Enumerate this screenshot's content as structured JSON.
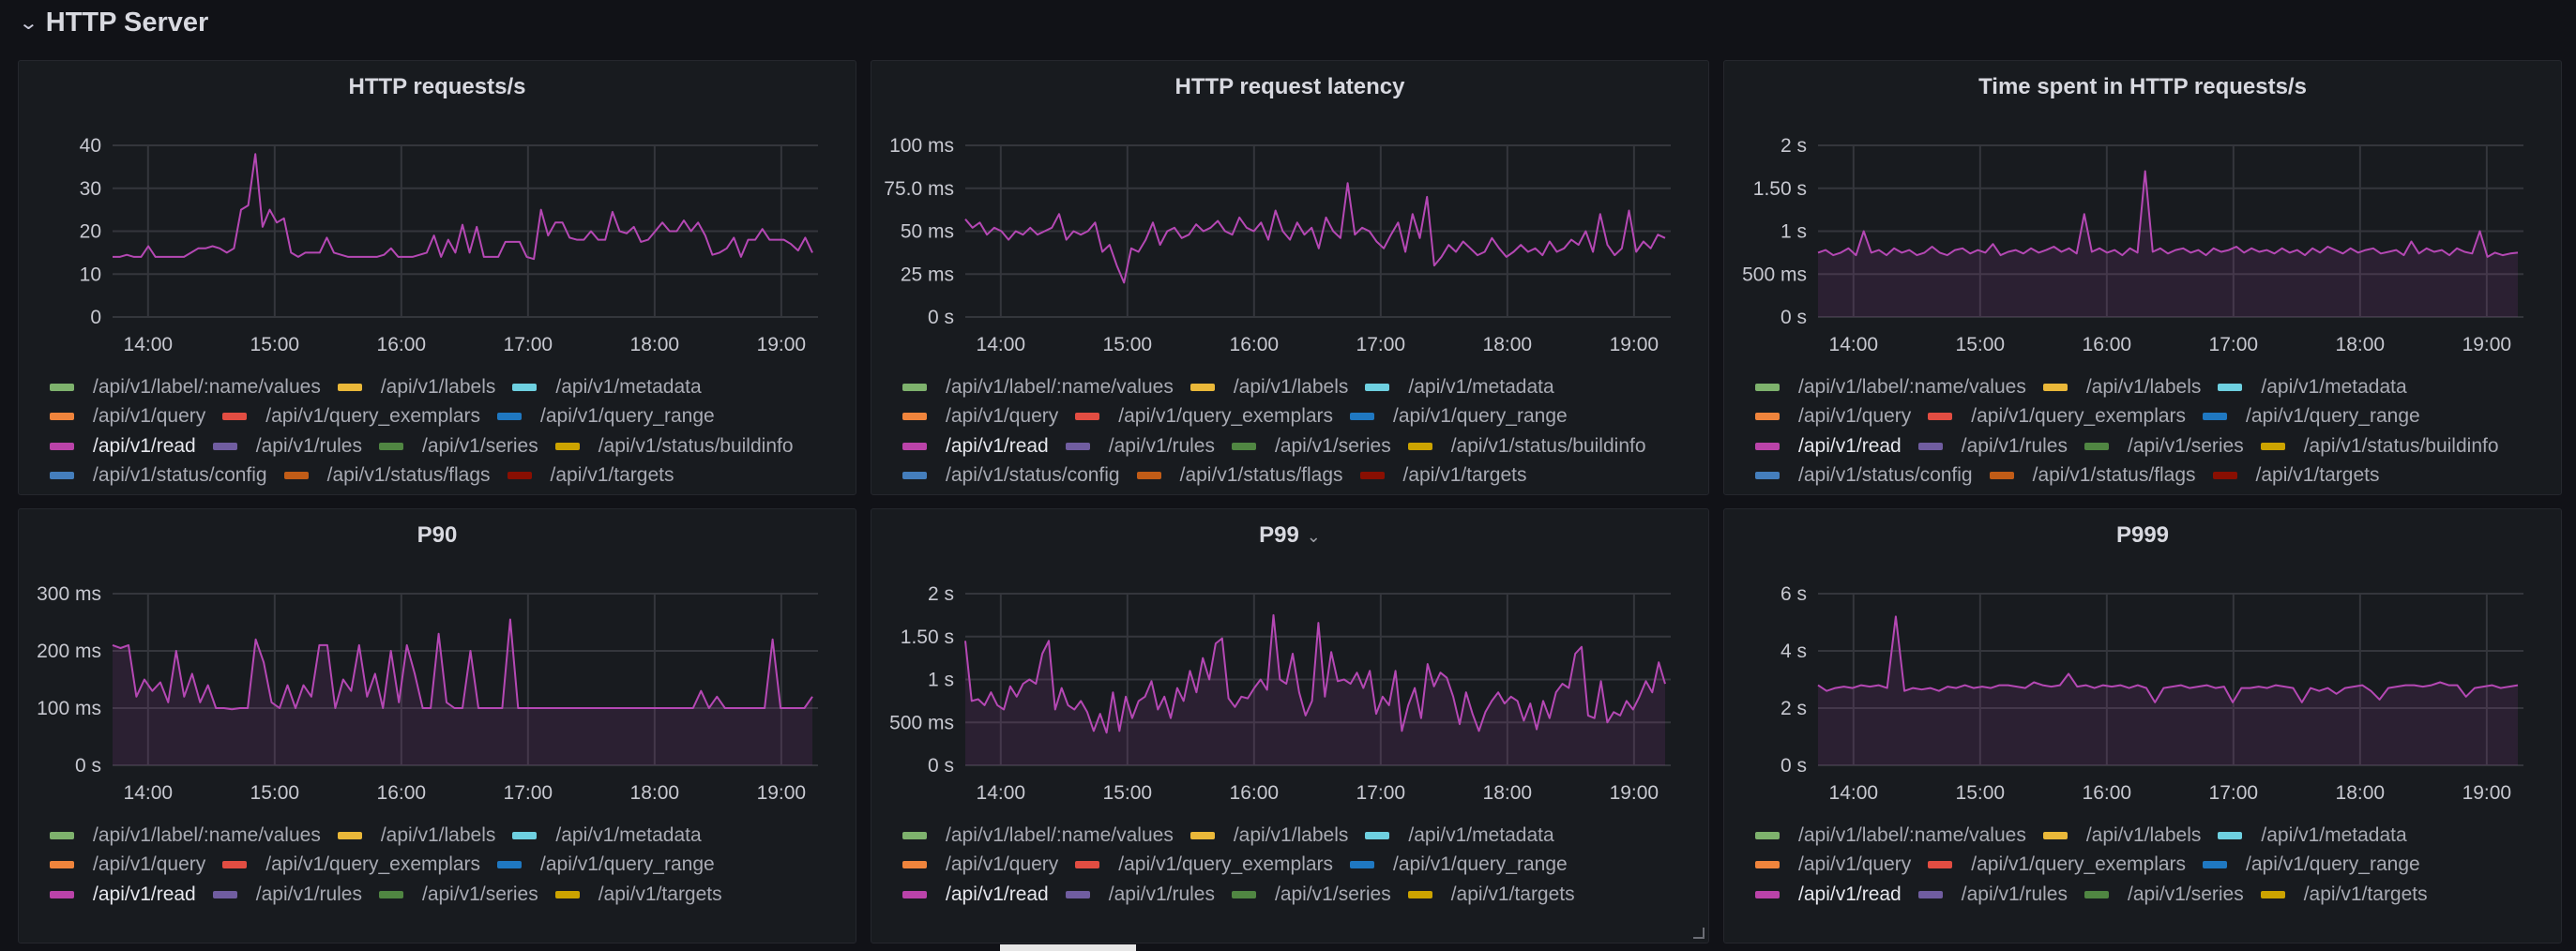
{
  "row": {
    "title": "HTTP Server",
    "chevron_icon": "chevron-down-icon"
  },
  "colors": {
    "line": "#b548b4",
    "fill": "rgba(181,72,180,0.13)",
    "grid": "#34363c"
  },
  "legend_all": [
    {
      "label": "/api/v1/label/:name/values",
      "color": "#7EB26D"
    },
    {
      "label": "/api/v1/labels",
      "color": "#EAB839"
    },
    {
      "label": "/api/v1/metadata",
      "color": "#6ED0E0"
    },
    {
      "label": "/api/v1/query",
      "color": "#EF843C"
    },
    {
      "label": "/api/v1/query_exemplars",
      "color": "#E24D42"
    },
    {
      "label": "/api/v1/query_range",
      "color": "#1F78C1"
    },
    {
      "label": "/api/v1/read",
      "color": "#BA43A9",
      "active": true
    },
    {
      "label": "/api/v1/rules",
      "color": "#705DA0"
    },
    {
      "label": "/api/v1/series",
      "color": "#508642"
    },
    {
      "label": "/api/v1/status/buildinfo",
      "color": "#CCA300"
    },
    {
      "label": "/api/v1/status/config",
      "color": "#447EBC"
    },
    {
      "label": "/api/v1/status/flags",
      "color": "#C15C17"
    },
    {
      "label": "/api/v1/targets",
      "color": "#890F02"
    }
  ],
  "legend_rows_top": [
    [
      0,
      1,
      2
    ],
    [
      3,
      4,
      5
    ],
    [
      6,
      7,
      8,
      9
    ],
    [
      10,
      11,
      12
    ]
  ],
  "legend_short": [
    {
      "label": "/api/v1/label/:name/values",
      "color": "#7EB26D"
    },
    {
      "label": "/api/v1/labels",
      "color": "#EAB839"
    },
    {
      "label": "/api/v1/metadata",
      "color": "#6ED0E0"
    },
    {
      "label": "/api/v1/query",
      "color": "#EF843C"
    },
    {
      "label": "/api/v1/query_exemplars",
      "color": "#E24D42"
    },
    {
      "label": "/api/v1/query_range",
      "color": "#1F78C1"
    },
    {
      "label": "/api/v1/read",
      "color": "#BA43A9",
      "active": true
    },
    {
      "label": "/api/v1/rules",
      "color": "#705DA0"
    },
    {
      "label": "/api/v1/series",
      "color": "#508642"
    },
    {
      "label": "/api/v1/targets",
      "color": "#CCA300"
    }
  ],
  "legend_rows_bottom": [
    [
      0,
      1,
      2
    ],
    [
      3,
      4,
      5
    ],
    [
      6,
      7,
      8,
      9
    ]
  ],
  "chart_data": [
    {
      "title": "HTTP requests/s",
      "type": "line",
      "fill": false,
      "legend": "top",
      "x_range_hours": [
        13.72,
        19.29
      ],
      "x_ticks": [
        "14:00",
        "15:00",
        "16:00",
        "17:00",
        "18:00",
        "19:00"
      ],
      "ylim": [
        0,
        40
      ],
      "y_ticks": [
        0,
        10,
        20,
        30,
        40
      ],
      "y_tick_labels": [
        "0",
        "10",
        "20",
        "30",
        "40"
      ],
      "series": [
        {
          "name": "/api/v1/read",
          "values": [
            14,
            14,
            14.5,
            14,
            14,
            16.5,
            14,
            14,
            14,
            14,
            14,
            15,
            16,
            16,
            16.5,
            16,
            15,
            16,
            25,
            26,
            38,
            21,
            25,
            22,
            23,
            15,
            14,
            15,
            15,
            15,
            18.5,
            15,
            14.5,
            14,
            14,
            14,
            14,
            14,
            14.5,
            16,
            14,
            14,
            14,
            14.5,
            15,
            19,
            14,
            18,
            15,
            21.5,
            15,
            21,
            14,
            14,
            14,
            17.5,
            17.5,
            17.5,
            14,
            13.5,
            25,
            19,
            22,
            22,
            18.5,
            18,
            18,
            20,
            18,
            18,
            24.5,
            20,
            19.5,
            21,
            17.5,
            18,
            20,
            22,
            20,
            20,
            22.5,
            20,
            22,
            19,
            14.5,
            15,
            16,
            18.5,
            14,
            18,
            18,
            20.5,
            18,
            18,
            18,
            17,
            15.5,
            18.5,
            15
          ]
        }
      ]
    },
    {
      "title": "HTTP request latency",
      "type": "line",
      "fill": false,
      "legend": "top",
      "x_range_hours": [
        13.72,
        19.29
      ],
      "x_ticks": [
        "14:00",
        "15:00",
        "16:00",
        "17:00",
        "18:00",
        "19:00"
      ],
      "ylim": [
        0,
        100
      ],
      "y_ticks": [
        0,
        25,
        50,
        75,
        100
      ],
      "y_tick_labels": [
        "0 s",
        "25 ms",
        "50 ms",
        "75.0 ms",
        "100 ms"
      ],
      "series": [
        {
          "name": "/api/v1/read",
          "values": [
            57,
            52,
            55,
            48,
            52,
            50,
            45,
            50,
            48,
            52,
            48,
            50,
            52,
            60,
            45,
            50,
            48,
            50,
            55,
            38,
            42,
            30,
            20,
            40,
            38,
            45,
            55,
            42,
            50,
            52,
            46,
            48,
            54,
            50,
            52,
            56,
            50,
            48,
            58,
            52,
            50,
            55,
            45,
            62,
            50,
            45,
            55,
            48,
            52,
            40,
            58,
            50,
            46,
            78,
            48,
            52,
            50,
            44,
            40,
            48,
            55,
            38,
            60,
            46,
            70,
            30,
            35,
            42,
            38,
            44,
            40,
            36,
            38,
            46,
            40,
            35,
            38,
            42,
            38,
            40,
            36,
            44,
            38,
            40,
            45,
            42,
            50,
            38,
            60,
            42,
            36,
            40,
            62,
            38,
            44,
            40,
            48,
            46
          ]
        }
      ]
    },
    {
      "title": "Time spent in HTTP requests/s",
      "type": "area",
      "fill": true,
      "legend": "top",
      "x_range_hours": [
        13.72,
        19.29
      ],
      "x_ticks": [
        "14:00",
        "15:00",
        "16:00",
        "17:00",
        "18:00",
        "19:00"
      ],
      "ylim": [
        0,
        2
      ],
      "y_ticks": [
        0,
        0.5,
        1,
        1.5,
        2
      ],
      "y_tick_labels": [
        "0 s",
        "500 ms",
        "1 s",
        "1.50 s",
        "2 s"
      ],
      "series": [
        {
          "name": "/api/v1/read",
          "values": [
            0.75,
            0.78,
            0.72,
            0.75,
            0.8,
            0.72,
            1.0,
            0.75,
            0.78,
            0.72,
            0.8,
            0.75,
            0.78,
            0.72,
            0.75,
            0.82,
            0.75,
            0.72,
            0.78,
            0.8,
            0.74,
            0.78,
            0.75,
            0.85,
            0.72,
            0.76,
            0.78,
            0.74,
            0.8,
            0.75,
            0.78,
            0.82,
            0.76,
            0.8,
            0.74,
            1.2,
            0.76,
            0.8,
            0.75,
            0.78,
            0.72,
            0.8,
            0.75,
            1.7,
            0.76,
            0.8,
            0.74,
            0.78,
            0.8,
            0.75,
            0.78,
            0.72,
            0.8,
            0.76,
            0.78,
            0.82,
            0.75,
            0.8,
            0.76,
            0.78,
            0.74,
            0.8,
            0.75,
            0.78,
            0.72,
            0.8,
            0.75,
            0.82,
            0.78,
            0.74,
            0.8,
            0.75,
            0.78,
            0.8,
            0.74,
            0.76,
            0.78,
            0.72,
            0.88,
            0.74,
            0.8,
            0.76,
            0.78,
            0.72,
            0.8,
            0.76,
            0.74,
            1.0,
            0.7,
            0.75,
            0.72,
            0.74,
            0.75
          ]
        }
      ]
    },
    {
      "title": "P90",
      "type": "area",
      "fill": true,
      "legend": "bottom",
      "x_range_hours": [
        13.72,
        19.29
      ],
      "x_ticks": [
        "14:00",
        "15:00",
        "16:00",
        "17:00",
        "18:00",
        "19:00"
      ],
      "ylim": [
        0,
        300
      ],
      "y_ticks": [
        0,
        100,
        200,
        300
      ],
      "y_tick_labels": [
        "0 s",
        "100 ms",
        "200 ms",
        "300 ms"
      ],
      "series": [
        {
          "name": "/api/v1/read",
          "values": [
            210,
            205,
            210,
            120,
            150,
            130,
            145,
            110,
            200,
            120,
            160,
            110,
            140,
            100,
            100,
            98,
            100,
            100,
            220,
            180,
            110,
            100,
            140,
            100,
            140,
            120,
            210,
            210,
            100,
            150,
            130,
            210,
            120,
            160,
            100,
            200,
            110,
            210,
            160,
            100,
            100,
            230,
            110,
            100,
            100,
            200,
            100,
            100,
            100,
            100,
            255,
            100,
            100,
            100,
            100,
            100,
            100,
            100,
            100,
            100,
            100,
            100,
            100,
            100,
            100,
            100,
            100,
            100,
            100,
            100,
            100,
            100,
            100,
            100,
            130,
            100,
            120,
            100,
            100,
            100,
            100,
            100,
            100,
            220,
            100,
            100,
            100,
            100,
            120
          ]
        }
      ]
    },
    {
      "title": "P99",
      "type": "area",
      "fill": true,
      "legend": "bottom",
      "has_menu": true,
      "x_range_hours": [
        13.72,
        19.29
      ],
      "x_ticks": [
        "14:00",
        "15:00",
        "16:00",
        "17:00",
        "18:00",
        "19:00"
      ],
      "ylim": [
        0,
        2
      ],
      "y_ticks": [
        0,
        0.5,
        1,
        1.5,
        2
      ],
      "y_tick_labels": [
        "0 s",
        "500 ms",
        "1 s",
        "1.50 s",
        "2 s"
      ],
      "series": [
        {
          "name": "/api/v1/read",
          "values": [
            1.45,
            0.75,
            0.77,
            0.7,
            0.85,
            0.7,
            0.65,
            0.92,
            0.8,
            0.95,
            1.0,
            0.95,
            1.3,
            1.45,
            0.65,
            0.9,
            0.7,
            0.65,
            0.75,
            0.62,
            0.4,
            0.6,
            0.38,
            0.85,
            0.4,
            0.8,
            0.55,
            0.75,
            0.8,
            0.98,
            0.65,
            0.8,
            0.55,
            0.9,
            0.75,
            1.1,
            0.85,
            1.25,
            1.0,
            1.42,
            1.48,
            0.78,
            0.68,
            0.8,
            0.78,
            0.9,
            1.0,
            0.88,
            1.75,
            1.0,
            0.95,
            1.3,
            0.85,
            0.58,
            0.75,
            1.66,
            0.8,
            1.32,
            0.98,
            1.0,
            0.95,
            1.08,
            0.9,
            1.1,
            0.6,
            0.8,
            0.7,
            1.1,
            0.4,
            0.7,
            0.9,
            0.55,
            1.18,
            0.92,
            1.08,
            1.02,
            0.8,
            0.48,
            0.85,
            0.6,
            0.4,
            0.62,
            0.75,
            0.85,
            0.72,
            0.8,
            0.75,
            0.52,
            0.72,
            0.42,
            0.75,
            0.55,
            0.85,
            0.95,
            0.9,
            1.3,
            1.38,
            0.58,
            0.55,
            0.98,
            0.5,
            0.62,
            0.58,
            0.75,
            0.65,
            0.8,
            0.98,
            0.85,
            1.2,
            0.95
          ]
        }
      ]
    },
    {
      "title": "P999",
      "type": "area",
      "fill": true,
      "legend": "bottom",
      "x_range_hours": [
        13.72,
        19.29
      ],
      "x_ticks": [
        "14:00",
        "15:00",
        "16:00",
        "17:00",
        "18:00",
        "19:00"
      ],
      "ylim": [
        0,
        6
      ],
      "y_ticks": [
        0,
        2,
        4,
        6
      ],
      "y_tick_labels": [
        "0 s",
        "2 s",
        "4 s",
        "6 s"
      ],
      "series": [
        {
          "name": "/api/v1/read",
          "values": [
            2.8,
            2.6,
            2.7,
            2.75,
            2.7,
            2.8,
            2.75,
            2.8,
            2.7,
            5.2,
            2.6,
            2.7,
            2.65,
            2.7,
            2.6,
            2.75,
            2.7,
            2.8,
            2.7,
            2.75,
            2.7,
            2.8,
            2.8,
            2.75,
            2.7,
            2.9,
            2.8,
            2.75,
            2.8,
            3.2,
            2.75,
            2.8,
            2.7,
            2.8,
            2.75,
            2.8,
            2.7,
            2.8,
            2.7,
            2.2,
            2.7,
            2.75,
            2.8,
            2.7,
            2.75,
            2.8,
            2.7,
            2.75,
            2.2,
            2.7,
            2.7,
            2.75,
            2.7,
            2.8,
            2.75,
            2.7,
            2.2,
            2.7,
            2.6,
            2.7,
            2.5,
            2.7,
            2.75,
            2.8,
            2.6,
            2.3,
            2.7,
            2.75,
            2.8,
            2.8,
            2.75,
            2.8,
            2.9,
            2.8,
            2.8,
            2.4,
            2.7,
            2.75,
            2.8,
            2.7,
            2.75,
            2.8
          ]
        }
      ]
    }
  ]
}
